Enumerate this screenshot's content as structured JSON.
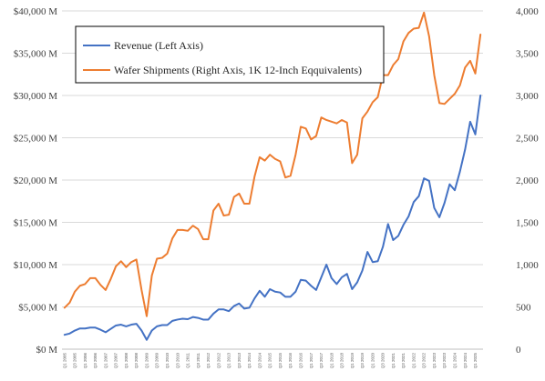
{
  "chart_data": {
    "type": "line",
    "title": "",
    "xlabel": "",
    "ylabel": "",
    "grid": true,
    "legend_position": "top-left",
    "x": [
      "Q1 2005",
      "Q2 2005",
      "Q3 2005",
      "Q4 2005",
      "Q1 2006",
      "Q2 2006",
      "Q3 2006",
      "Q4 2006",
      "Q1 2007",
      "Q2 2007",
      "Q3 2007",
      "Q4 2007",
      "Q1 2008",
      "Q2 2008",
      "Q3 2008",
      "Q4 2008",
      "Q1 2009",
      "Q2 2009",
      "Q3 2009",
      "Q4 2009",
      "Q1 2010",
      "Q2 2010",
      "Q3 2010",
      "Q4 2010",
      "Q1 2011",
      "Q2 2011",
      "Q3 2011",
      "Q4 2011",
      "Q1 2012",
      "Q2 2012",
      "Q3 2012",
      "Q4 2012",
      "Q1 2013",
      "Q2 2013",
      "Q3 2013",
      "Q4 2013",
      "Q1 2014",
      "Q2 2014",
      "Q3 2014",
      "Q4 2014",
      "Q1 2015",
      "Q2 2015",
      "Q3 2015",
      "Q4 2015",
      "Q1 2016",
      "Q2 2016",
      "Q3 2016",
      "Q4 2016",
      "Q1 2017",
      "Q2 2017",
      "Q3 2017",
      "Q4 2017",
      "Q1 2018",
      "Q2 2018",
      "Q3 2018",
      "Q4 2018",
      "Q1 2019",
      "Q2 2019",
      "Q3 2019",
      "Q4 2019",
      "Q1 2020",
      "Q2 2020",
      "Q3 2020",
      "Q4 2020",
      "Q1 2021",
      "Q2 2021",
      "Q3 2021",
      "Q4 2021",
      "Q1 2022",
      "Q2 2022",
      "Q3 2022",
      "Q4 2022",
      "Q1 2023",
      "Q2 2023",
      "Q3 2023",
      "Q4 2023",
      "Q1 2024",
      "Q2 2024",
      "Q3 2024",
      "Q4 2024",
      "Q1 2025",
      "Q2 2025"
    ],
    "x_tick_labels": [
      "Q1 2005",
      "Q3 2005",
      "Q1 2006",
      "Q3 2006",
      "Q1 2007",
      "Q3 2007",
      "Q1 2008",
      "Q3 2008",
      "Q1 2009",
      "Q3 2009",
      "Q1 2010",
      "Q3 2010",
      "Q1 2011",
      "Q3 2011",
      "Q1 2012",
      "Q3 2012",
      "Q1 2013",
      "Q3 2013",
      "Q1 2014",
      "Q3 2014",
      "Q1 2015",
      "Q3 2015",
      "Q1 2016",
      "Q3 2016",
      "Q1 2017",
      "Q3 2017",
      "Q1 2018",
      "Q3 2018",
      "Q1 2019",
      "Q3 2019",
      "Q1 2020",
      "Q3 2020",
      "Q1 2021",
      "Q3 2021",
      "Q1 2022",
      "Q3 2022",
      "Q1 2023",
      "Q3 2023",
      "Q1 2024",
      "Q3 2024",
      "Q1 2025"
    ],
    "y_left": {
      "ticks": [
        "$0 M",
        "$5,000 M",
        "$10,000 M",
        "$15,000 M",
        "$20,000 M",
        "$25,000 M",
        "$30,000 M",
        "$35,000 M",
        "$40,000 M"
      ],
      "ylim": [
        0,
        40000
      ]
    },
    "y_right": {
      "ticks": [
        "0",
        "500",
        "1,000",
        "1,500",
        "2,000",
        "2,500",
        "3,000",
        "3,500",
        "4,000"
      ],
      "ylim": [
        0,
        4000
      ]
    },
    "series": [
      {
        "name": "Revenue (Left Axis)",
        "axis": "left",
        "color": "#4472C4",
        "values": [
          1700,
          1850,
          2200,
          2450,
          2450,
          2550,
          2550,
          2300,
          2000,
          2400,
          2800,
          2900,
          2700,
          2900,
          3000,
          2200,
          1100,
          2200,
          2700,
          2850,
          2850,
          3350,
          3500,
          3600,
          3550,
          3800,
          3700,
          3500,
          3500,
          4200,
          4700,
          4700,
          4500,
          5100,
          5400,
          4800,
          4900,
          6000,
          6900,
          6200,
          7100,
          6800,
          6700,
          6200,
          6200,
          6800,
          8200,
          8100,
          7500,
          7000,
          8500,
          10000,
          8400,
          7700,
          8500,
          8900,
          7100,
          7900,
          9300,
          11500,
          10300,
          10400,
          12100,
          14800,
          12900,
          13400,
          14700,
          15700,
          17400,
          18100,
          20200,
          19900,
          16700,
          15600,
          17300,
          19500,
          18800,
          21000,
          23600,
          26900,
          25400,
          30000
        ]
      },
      {
        "name": "Wafer Shipments (Right Axis, 1K 12-Inch Eqquivalents)",
        "axis": "right",
        "color": "#ED7D31",
        "values": [
          490,
          550,
          680,
          750,
          770,
          840,
          840,
          760,
          700,
          830,
          980,
          1040,
          970,
          1030,
          1060,
          700,
          390,
          870,
          1070,
          1080,
          1130,
          1310,
          1410,
          1410,
          1400,
          1460,
          1420,
          1300,
          1300,
          1640,
          1720,
          1580,
          1590,
          1800,
          1840,
          1720,
          1720,
          2040,
          2270,
          2230,
          2300,
          2250,
          2220,
          2030,
          2050,
          2300,
          2630,
          2610,
          2480,
          2520,
          2740,
          2710,
          2690,
          2670,
          2710,
          2680,
          2200,
          2300,
          2730,
          2810,
          2920,
          2980,
          3240,
          3240,
          3360,
          3430,
          3640,
          3740,
          3790,
          3800,
          3980,
          3700,
          3240,
          2910,
          2900,
          2960,
          3020,
          3120,
          3330,
          3410,
          3260,
          3720
        ]
      }
    ]
  }
}
